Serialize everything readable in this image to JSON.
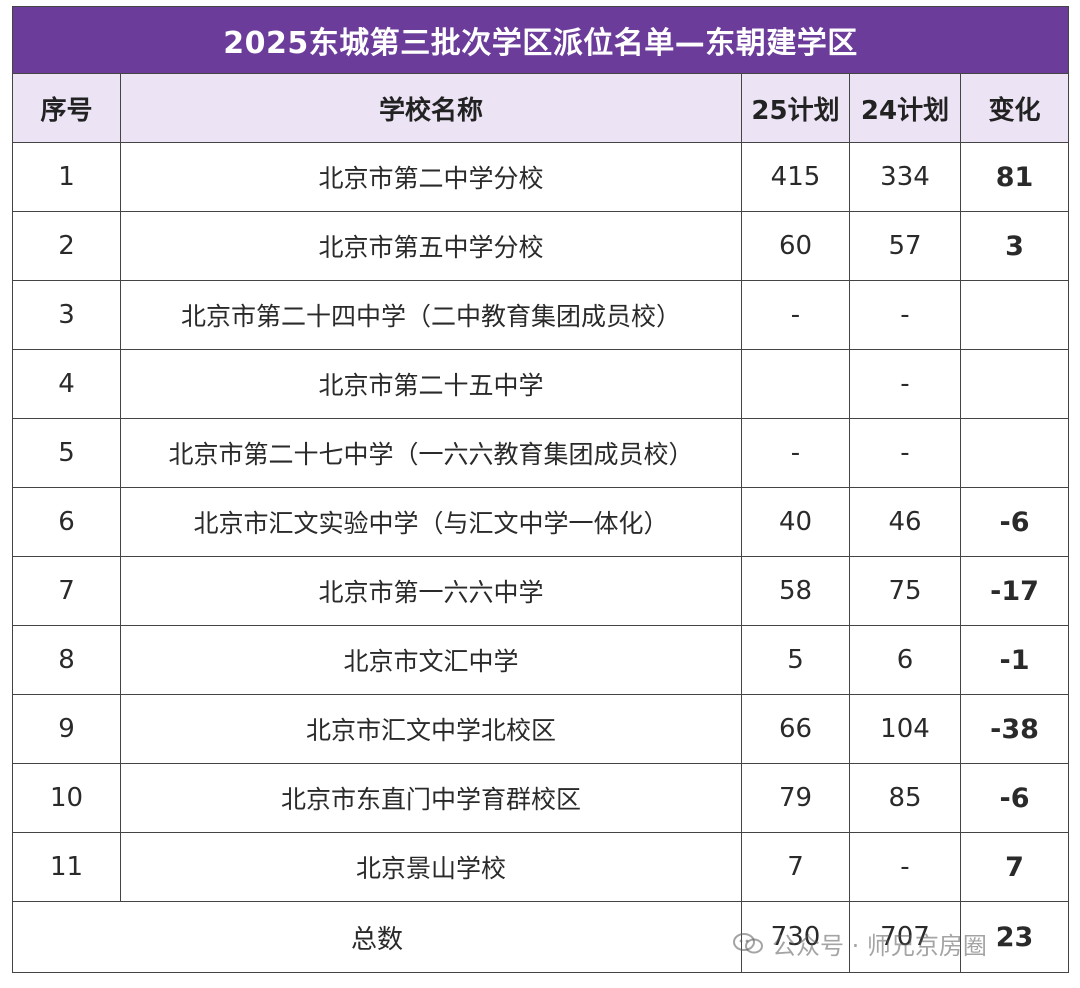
{
  "title": "2025东城第三批次学区派位名单—东朝建学区",
  "headers": {
    "index": "序号",
    "school": "学校名称",
    "plan25": "25计划",
    "plan24": "24计划",
    "change": "变化"
  },
  "rows": [
    {
      "index": "1",
      "school": "北京市第二中学分校",
      "plan25": "415",
      "plan24": "334",
      "change": "81",
      "change_sign": "positive"
    },
    {
      "index": "2",
      "school": "北京市第五中学分校",
      "plan25": "60",
      "plan24": "57",
      "change": "3",
      "change_sign": "positive"
    },
    {
      "index": "3",
      "school": "北京市第二十四中学（二中教育集团成员校）",
      "plan25": "-",
      "plan24": "-",
      "change": "",
      "change_sign": "none"
    },
    {
      "index": "4",
      "school": "北京市第二十五中学",
      "plan25": "",
      "plan24": "-",
      "change": "",
      "change_sign": "none"
    },
    {
      "index": "5",
      "school": "北京市第二十七中学（一六六教育集团成员校）",
      "plan25": "-",
      "plan24": "-",
      "change": "",
      "change_sign": "none"
    },
    {
      "index": "6",
      "school": "北京市汇文实验中学（与汇文中学一体化）",
      "plan25": "40",
      "plan24": "46",
      "change": "-6",
      "change_sign": "negative"
    },
    {
      "index": "7",
      "school": "北京市第一六六中学",
      "plan25": "58",
      "plan24": "75",
      "change": "-17",
      "change_sign": "negative"
    },
    {
      "index": "8",
      "school": "北京市文汇中学",
      "plan25": "5",
      "plan24": "6",
      "change": "-1",
      "change_sign": "negative"
    },
    {
      "index": "9",
      "school": "北京市汇文中学北校区",
      "plan25": "66",
      "plan24": "104",
      "change": "-38",
      "change_sign": "negative"
    },
    {
      "index": "10",
      "school": "北京市东直门中学育群校区",
      "plan25": "79",
      "plan24": "85",
      "change": "-6",
      "change_sign": "negative"
    },
    {
      "index": "11",
      "school": "北京景山学校",
      "plan25": "7",
      "plan24": "-",
      "change": "7",
      "change_sign": "positive"
    }
  ],
  "total": {
    "label": "总数",
    "plan25": "730",
    "plan24": "707",
    "change": "23"
  },
  "watermark": {
    "text": "公众号 · 师兄京房圈"
  },
  "colors": {
    "title_bg": "#6b3c9a",
    "header_bg": "#ece4f5",
    "positive": "#a3322e",
    "negative": "#7ba05b"
  }
}
